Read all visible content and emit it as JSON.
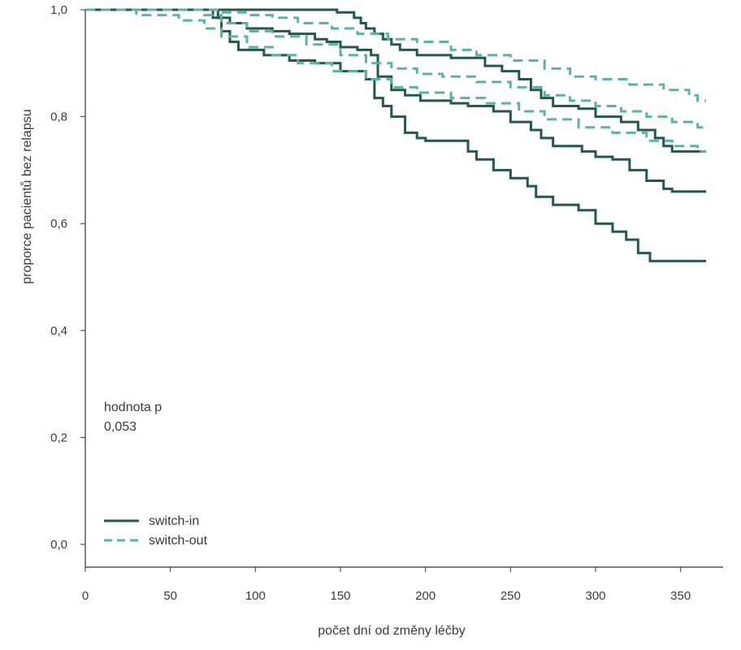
{
  "chart_data": {
    "type": "line",
    "step": true,
    "xlabel": "počet dní od změny léčby",
    "ylabel": "proporce pacientů bez relapsu",
    "xlim": [
      0,
      375
    ],
    "ylim": [
      0,
      1.0
    ],
    "xticks": [
      0,
      50,
      100,
      150,
      200,
      250,
      300,
      350
    ],
    "yticks": [
      0.0,
      0.2,
      0.4,
      0.6,
      0.8,
      1.0
    ],
    "xtick_labels": [
      "0",
      "50",
      "100",
      "150",
      "200",
      "250",
      "300",
      "350"
    ],
    "ytick_labels": [
      "0,0",
      "0,2",
      "0,4",
      "0,6",
      "0,8",
      "1,0"
    ],
    "grid": false,
    "legend_position": "bottom-left",
    "annotation": {
      "title": "hodnota p",
      "value": "0,053"
    },
    "colors": {
      "switch_in": "#24584a",
      "switch_out": "#5bb3a5",
      "axis": "#333333",
      "text": "#3a3a3a"
    },
    "legend": [
      {
        "label": "switch-in",
        "style": "solid",
        "color": "#24584a"
      },
      {
        "label": "switch-out",
        "style": "dashed",
        "color": "#5bb3a5"
      }
    ],
    "series": [
      {
        "group": "switch-in",
        "role": "upper",
        "style": "solid",
        "points": [
          [
            0,
            1.0
          ],
          [
            145,
            1.0
          ],
          [
            148,
            0.995
          ],
          [
            158,
            0.985
          ],
          [
            162,
            0.975
          ],
          [
            165,
            0.965
          ],
          [
            170,
            0.955
          ],
          [
            175,
            0.945
          ],
          [
            180,
            0.935
          ],
          [
            185,
            0.925
          ],
          [
            195,
            0.915
          ],
          [
            215,
            0.91
          ],
          [
            235,
            0.895
          ],
          [
            245,
            0.885
          ],
          [
            255,
            0.87
          ],
          [
            262,
            0.85
          ],
          [
            268,
            0.835
          ],
          [
            275,
            0.82
          ],
          [
            290,
            0.815
          ],
          [
            300,
            0.8
          ],
          [
            315,
            0.79
          ],
          [
            325,
            0.775
          ],
          [
            335,
            0.76
          ],
          [
            340,
            0.745
          ],
          [
            345,
            0.735
          ],
          [
            365,
            0.735
          ]
        ]
      },
      {
        "group": "switch-in",
        "role": "estimate",
        "style": "solid",
        "points": [
          [
            0,
            1.0
          ],
          [
            75,
            1.0
          ],
          [
            78,
            0.985
          ],
          [
            85,
            0.975
          ],
          [
            95,
            0.965
          ],
          [
            110,
            0.96
          ],
          [
            120,
            0.955
          ],
          [
            135,
            0.945
          ],
          [
            142,
            0.94
          ],
          [
            150,
            0.93
          ],
          [
            160,
            0.925
          ],
          [
            168,
            0.915
          ],
          [
            172,
            0.875
          ],
          [
            180,
            0.85
          ],
          [
            188,
            0.84
          ],
          [
            197,
            0.83
          ],
          [
            215,
            0.825
          ],
          [
            225,
            0.82
          ],
          [
            240,
            0.81
          ],
          [
            250,
            0.79
          ],
          [
            262,
            0.775
          ],
          [
            268,
            0.76
          ],
          [
            275,
            0.745
          ],
          [
            292,
            0.735
          ],
          [
            300,
            0.725
          ],
          [
            310,
            0.72
          ],
          [
            320,
            0.7
          ],
          [
            330,
            0.68
          ],
          [
            340,
            0.665
          ],
          [
            345,
            0.66
          ],
          [
            365,
            0.66
          ]
        ]
      },
      {
        "group": "switch-in",
        "role": "lower",
        "style": "solid",
        "points": [
          [
            0,
            1.0
          ],
          [
            70,
            1.0
          ],
          [
            75,
            0.985
          ],
          [
            80,
            0.96
          ],
          [
            85,
            0.94
          ],
          [
            90,
            0.925
          ],
          [
            105,
            0.915
          ],
          [
            120,
            0.905
          ],
          [
            135,
            0.9
          ],
          [
            150,
            0.885
          ],
          [
            165,
            0.87
          ],
          [
            170,
            0.835
          ],
          [
            175,
            0.82
          ],
          [
            180,
            0.8
          ],
          [
            188,
            0.77
          ],
          [
            195,
            0.76
          ],
          [
            200,
            0.755
          ],
          [
            225,
            0.735
          ],
          [
            230,
            0.72
          ],
          [
            240,
            0.7
          ],
          [
            250,
            0.685
          ],
          [
            260,
            0.67
          ],
          [
            265,
            0.65
          ],
          [
            275,
            0.635
          ],
          [
            290,
            0.625
          ],
          [
            300,
            0.6
          ],
          [
            310,
            0.585
          ],
          [
            318,
            0.57
          ],
          [
            325,
            0.545
          ],
          [
            332,
            0.53
          ],
          [
            365,
            0.53
          ]
        ]
      },
      {
        "group": "switch-out",
        "role": "upper",
        "style": "dashed",
        "points": [
          [
            0,
            1.0
          ],
          [
            65,
            1.0
          ],
          [
            80,
            0.995
          ],
          [
            95,
            0.99
          ],
          [
            110,
            0.985
          ],
          [
            125,
            0.975
          ],
          [
            145,
            0.965
          ],
          [
            160,
            0.955
          ],
          [
            178,
            0.945
          ],
          [
            195,
            0.94
          ],
          [
            215,
            0.925
          ],
          [
            230,
            0.915
          ],
          [
            250,
            0.905
          ],
          [
            270,
            0.89
          ],
          [
            285,
            0.875
          ],
          [
            300,
            0.87
          ],
          [
            320,
            0.86
          ],
          [
            340,
            0.85
          ],
          [
            355,
            0.84
          ],
          [
            360,
            0.83
          ],
          [
            365,
            0.83
          ]
        ]
      },
      {
        "group": "switch-out",
        "role": "estimate",
        "style": "dashed",
        "points": [
          [
            0,
            1.0
          ],
          [
            60,
            1.0
          ],
          [
            70,
            0.99
          ],
          [
            80,
            0.975
          ],
          [
            95,
            0.96
          ],
          [
            110,
            0.95
          ],
          [
            130,
            0.935
          ],
          [
            150,
            0.915
          ],
          [
            165,
            0.9
          ],
          [
            180,
            0.89
          ],
          [
            195,
            0.88
          ],
          [
            210,
            0.875
          ],
          [
            230,
            0.865
          ],
          [
            250,
            0.855
          ],
          [
            270,
            0.84
          ],
          [
            285,
            0.83
          ],
          [
            300,
            0.82
          ],
          [
            315,
            0.81
          ],
          [
            330,
            0.8
          ],
          [
            345,
            0.79
          ],
          [
            360,
            0.78
          ],
          [
            365,
            0.78
          ]
        ]
      },
      {
        "group": "switch-out",
        "role": "lower",
        "style": "dashed",
        "points": [
          [
            0,
            1.0
          ],
          [
            30,
            0.99
          ],
          [
            55,
            0.98
          ],
          [
            70,
            0.965
          ],
          [
            80,
            0.95
          ],
          [
            95,
            0.93
          ],
          [
            110,
            0.915
          ],
          [
            125,
            0.9
          ],
          [
            145,
            0.885
          ],
          [
            165,
            0.87
          ],
          [
            180,
            0.855
          ],
          [
            195,
            0.845
          ],
          [
            215,
            0.835
          ],
          [
            235,
            0.825
          ],
          [
            255,
            0.81
          ],
          [
            270,
            0.795
          ],
          [
            290,
            0.78
          ],
          [
            310,
            0.77
          ],
          [
            330,
            0.755
          ],
          [
            345,
            0.745
          ],
          [
            360,
            0.735
          ],
          [
            365,
            0.735
          ]
        ]
      }
    ]
  }
}
